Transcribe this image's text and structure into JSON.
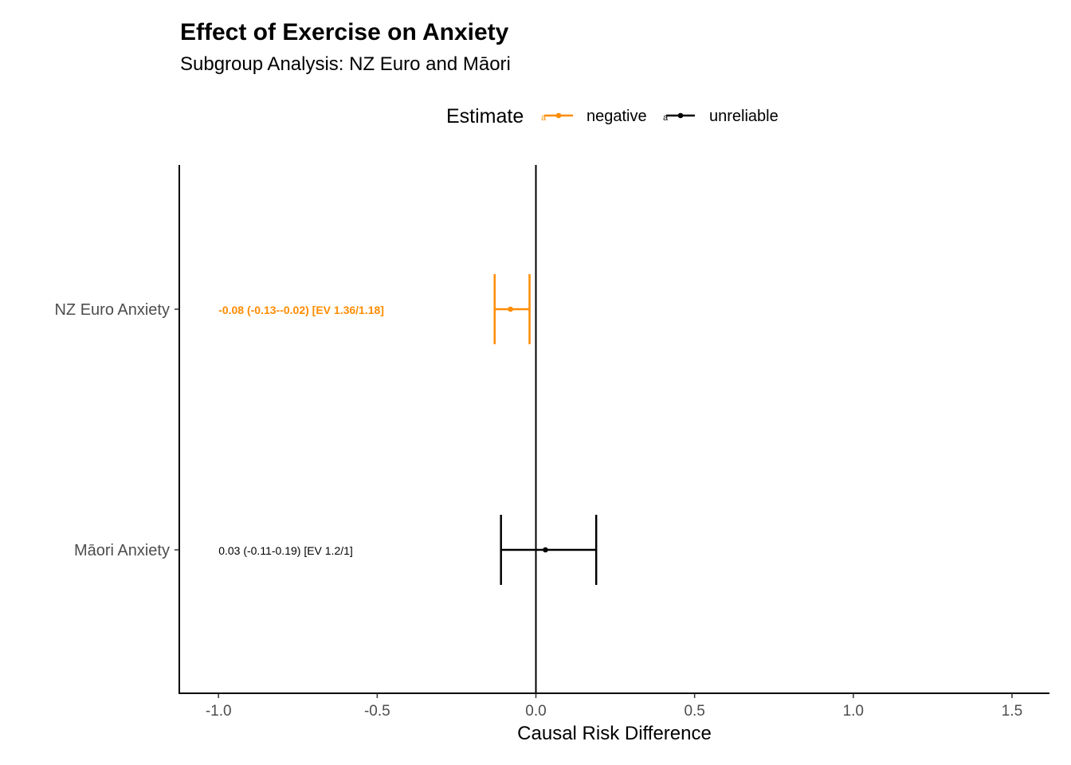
{
  "chart_data": {
    "type": "forest",
    "title": "Effect of Exercise on Anxiety",
    "subtitle": "Subgroup Analysis: NZ Euro and Māori",
    "xlabel": "Causal Risk Difference",
    "ylabel": "",
    "xlim": [
      -1.12,
      1.62
    ],
    "x_ticks": [
      -1.0,
      -0.5,
      0.0,
      0.5,
      1.0,
      1.5
    ],
    "x_tick_labels": [
      "-1.0",
      "-0.5",
      "0.0",
      "0.5",
      "1.0",
      "1.5"
    ],
    "reference_line": 0,
    "legend": {
      "title": "Estimate",
      "position": "top",
      "entries": [
        {
          "name": "negative",
          "color": "#FF8C00"
        },
        {
          "name": "unreliable",
          "color": "#000000"
        }
      ],
      "key_glyph_text": "a"
    },
    "rows": [
      {
        "category": "NZ Euro Anxiety",
        "estimate": -0.08,
        "lower": -0.13,
        "upper": -0.02,
        "group": "negative",
        "label": "-0.08 (-0.13--0.02) [EV 1.36/1.18]",
        "label_bold": true
      },
      {
        "category": "Māori Anxiety",
        "estimate": 0.03,
        "lower": -0.11,
        "upper": 0.19,
        "group": "unreliable",
        "label": "0.03 (-0.11-0.19) [EV 1.2/1]",
        "label_bold": false
      }
    ],
    "label_x": -1.0,
    "grid": false
  }
}
